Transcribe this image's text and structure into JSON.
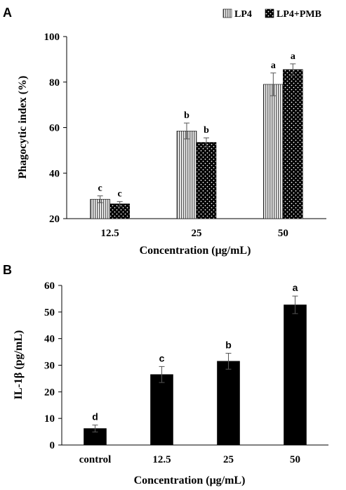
{
  "chart_data": [
    {
      "type": "bar",
      "panel_label": "A",
      "categories": [
        "12.5",
        "25",
        "50"
      ],
      "series": [
        {
          "name": "LP4",
          "values": [
            28.5,
            58.5,
            79
          ],
          "errors": [
            1.5,
            3.5,
            5
          ],
          "letters": [
            "c",
            "b",
            "a"
          ],
          "pattern": "vertical-stripes"
        },
        {
          "name": "LP4+PMB",
          "values": [
            26.5,
            53.5,
            85.5
          ],
          "errors": [
            1,
            2,
            2.5
          ],
          "letters": [
            "c",
            "b",
            "a"
          ],
          "pattern": "black-dots"
        }
      ],
      "xlabel": "Concentration (μg/mL)",
      "ylabel": "Phagocytic index (%)",
      "ylim": [
        20,
        100
      ],
      "yticks": [
        "20",
        "40",
        "60",
        "80",
        "100"
      ],
      "legend_position": "top-right",
      "grid": false
    },
    {
      "type": "bar",
      "panel_label": "B",
      "categories": [
        "control",
        "12.5",
        "25",
        "50"
      ],
      "series": [
        {
          "values": [
            6.2,
            26.5,
            31.5,
            52.7
          ],
          "errors": [
            1.3,
            3,
            3,
            3.3
          ],
          "letters": [
            "d",
            "c",
            "b",
            "a"
          ],
          "color": "#000000"
        }
      ],
      "xlabel": "Concentration (μg/mL)",
      "ylabel": "IL-1β (pg/mL)",
      "ylim": [
        0,
        60
      ],
      "yticks": [
        "0",
        "10",
        "20",
        "30",
        "40",
        "50",
        "60"
      ],
      "grid": false
    }
  ]
}
